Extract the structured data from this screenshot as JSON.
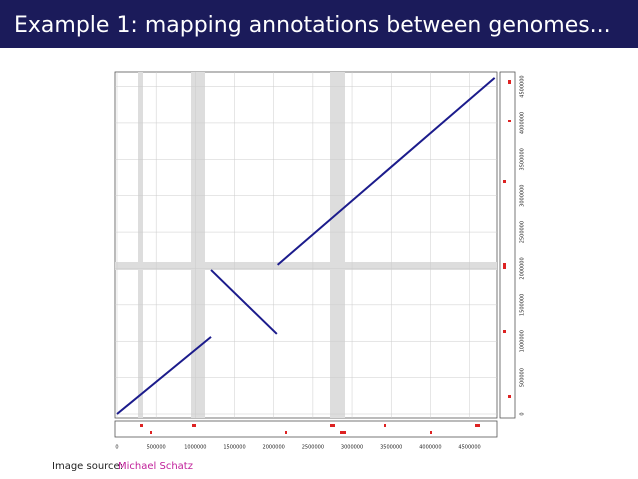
{
  "slide_title": "Example 1: mapping annotations between genomes...",
  "source_label": "Image source:",
  "source_name": "Michael Schatz",
  "chart_data": {
    "type": "line",
    "x": [
      0,
      1200000,
      null,
      1200000,
      2040000,
      null,
      2050000,
      4820000
    ],
    "values": [
      0,
      1060000,
      null,
      1980000,
      1100000,
      null,
      2050000,
      4620000
    ],
    "color": "#1c1c8c",
    "xlim": [
      0,
      4850000
    ],
    "ylim": [
      0,
      4700000
    ],
    "xticks": [
      0,
      500000,
      1000000,
      1500000,
      2000000,
      2500000,
      3000000,
      3500000,
      4000000,
      4500000
    ],
    "yticks": [
      0,
      500000,
      1000000,
      1500000,
      2000000,
      2500000,
      3000000,
      3500000,
      4000000,
      4500000
    ],
    "grid": true
  }
}
